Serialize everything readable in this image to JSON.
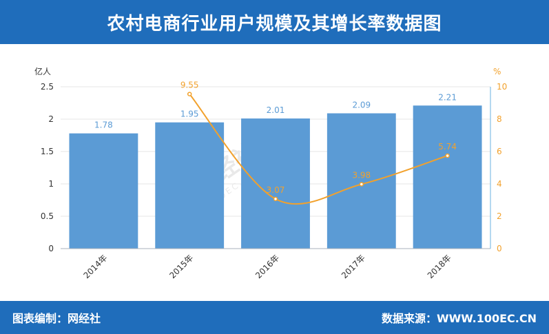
{
  "header": {
    "title": "农村电商行业用户规模及其增长率数据图"
  },
  "footer": {
    "left": "图表编制：网经社",
    "right": "数据来源：WWW.100EC.CN"
  },
  "watermark": {
    "logo": "网经社",
    "sub": "100EC.CN"
  },
  "colors": {
    "bar": "#5b9bd5",
    "line": "#f2a12c",
    "header": "#1f6dbb"
  },
  "chart_data": {
    "type": "bar",
    "categories": [
      "2014年",
      "2015年",
      "2016年",
      "2017年",
      "2018年"
    ],
    "series": [
      {
        "values": [
          1.78,
          1.95,
          2.01,
          2.09,
          2.21
        ],
        "chart_type": "bar",
        "axis": "left"
      },
      {
        "values": [
          null,
          9.55,
          3.07,
          3.98,
          5.74
        ],
        "chart_type": "line",
        "axis": "right"
      }
    ],
    "ylabel_left": "亿人",
    "ylabel_right": "%",
    "ylim_left": [
      0,
      2.5
    ],
    "ylim_right": [
      0,
      10
    ],
    "yticks_left": [
      "0",
      "0.5",
      "1",
      "1.5",
      "2",
      "2.5"
    ],
    "yticks_right": [
      "0",
      "2",
      "4",
      "6",
      "8",
      "10"
    ],
    "grid": true
  }
}
